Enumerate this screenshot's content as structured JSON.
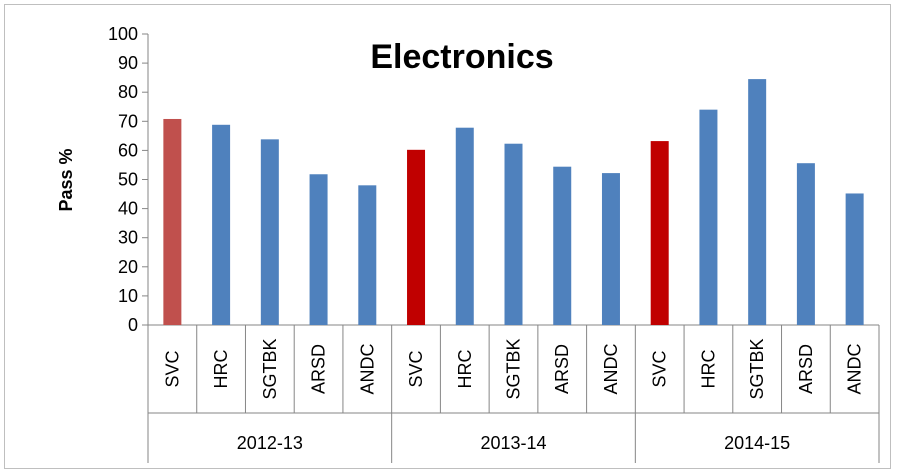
{
  "chart_data": {
    "type": "bar",
    "title": "Electronics",
    "xlabel": "",
    "ylabel": "Pass %",
    "ylim": [
      0,
      100
    ],
    "yticks": [
      0,
      10,
      20,
      30,
      40,
      50,
      60,
      70,
      80,
      90,
      100
    ],
    "groups": [
      "2012-13",
      "2013-14",
      "2014-15"
    ],
    "categories": [
      "SVC",
      "HRC",
      "SGTBK",
      "ARSD",
      "ANDC",
      "SVC",
      "HRC",
      "SGTBK",
      "ARSD",
      "ANDC",
      "SVC",
      "HRC",
      "SGTBK",
      "ARSD",
      "ANDC"
    ],
    "values": [
      70.8,
      68.8,
      63.8,
      51.8,
      48.0,
      60.2,
      67.8,
      62.3,
      54.4,
      52.2,
      63.2,
      74.0,
      84.5,
      55.6,
      45.2
    ],
    "colors": [
      "#c0504d",
      "#4f81bd",
      "#4f81bd",
      "#4f81bd",
      "#4f81bd",
      "#c00000",
      "#4f81bd",
      "#4f81bd",
      "#4f81bd",
      "#4f81bd",
      "#c00000",
      "#4f81bd",
      "#4f81bd",
      "#4f81bd",
      "#4f81bd"
    ],
    "grid": false,
    "legend": "none"
  }
}
